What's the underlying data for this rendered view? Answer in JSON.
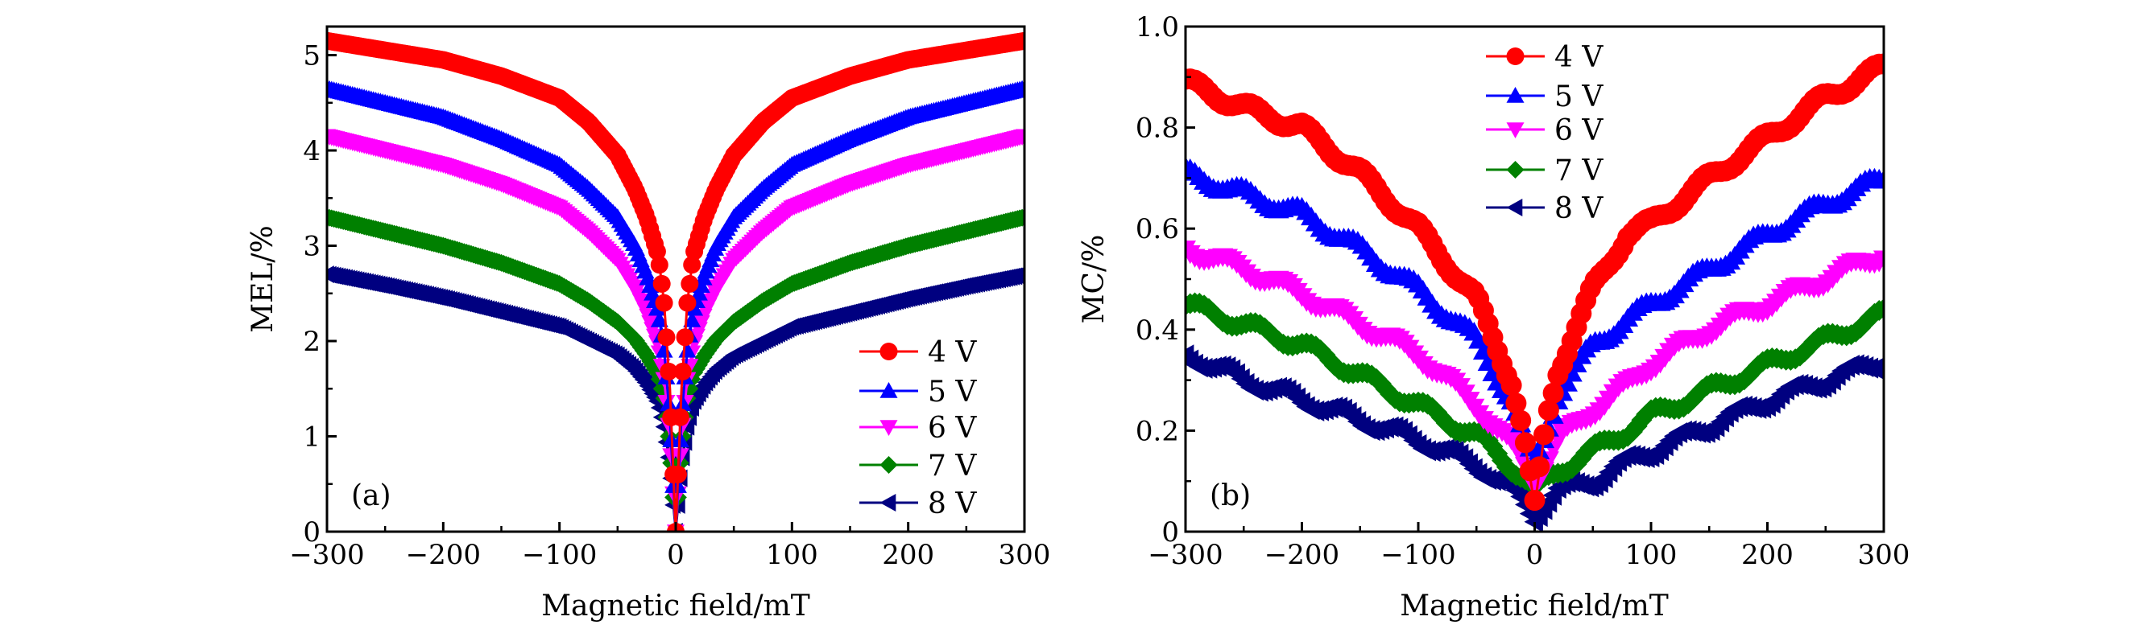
{
  "chart_data": [
    {
      "type": "line",
      "panel_label": "(a)",
      "xlabel": "Magnetic field/mT",
      "ylabel": "MEL/%",
      "xlim": [
        -300,
        300
      ],
      "ylim": [
        0,
        5.3
      ],
      "xticks": [
        -300,
        -200,
        -100,
        0,
        100,
        200,
        300
      ],
      "xtick_labels": [
        "−300",
        "−200",
        "−100",
        "0",
        "100",
        "200",
        "300"
      ],
      "yticks": [
        0,
        1,
        2,
        3,
        4,
        5
      ],
      "ytick_labels": [
        "0",
        "1",
        "2",
        "3",
        "4",
        "5"
      ],
      "legend_position": "lower-right",
      "x": [
        -300,
        -250,
        -200,
        -150,
        -100,
        -75,
        -50,
        -35,
        -25,
        -15,
        -10,
        -5,
        0,
        5,
        10,
        15,
        25,
        35,
        50,
        75,
        100,
        150,
        200,
        250,
        300
      ],
      "series": [
        {
          "name": "4 V",
          "color": "#ff0000",
          "marker": "circle",
          "values": [
            5.15,
            5.05,
            4.95,
            4.78,
            4.55,
            4.3,
            3.95,
            3.6,
            3.3,
            2.9,
            2.4,
            1.5,
            0,
            1.5,
            2.4,
            2.9,
            3.3,
            3.6,
            3.95,
            4.3,
            4.55,
            4.78,
            4.95,
            5.05,
            5.15
          ]
        },
        {
          "name": "5 V",
          "color": "#0000ff",
          "marker": "triangle-up",
          "values": [
            4.65,
            4.5,
            4.35,
            4.12,
            3.85,
            3.6,
            3.3,
            3.0,
            2.7,
            2.3,
            1.9,
            1.2,
            0,
            1.2,
            1.9,
            2.3,
            2.7,
            3.0,
            3.3,
            3.6,
            3.85,
            4.12,
            4.35,
            4.5,
            4.65
          ]
        },
        {
          "name": "6 V",
          "color": "#ff00ff",
          "marker": "triangle-down",
          "values": [
            4.15,
            4.0,
            3.85,
            3.65,
            3.4,
            3.15,
            2.85,
            2.55,
            2.3,
            1.95,
            1.6,
            1.0,
            0,
            1.0,
            1.6,
            1.95,
            2.3,
            2.55,
            2.85,
            3.15,
            3.4,
            3.65,
            3.85,
            4.0,
            4.15
          ]
        },
        {
          "name": "7 V",
          "color": "#008000",
          "marker": "diamond",
          "values": [
            3.3,
            3.15,
            3.0,
            2.82,
            2.6,
            2.42,
            2.2,
            2.02,
            1.85,
            1.65,
            1.4,
            0.9,
            0,
            0.9,
            1.4,
            1.65,
            1.85,
            2.02,
            2.2,
            2.42,
            2.6,
            2.82,
            3.0,
            3.15,
            3.3
          ]
        },
        {
          "name": "8 V",
          "color": "#000080",
          "marker": "triangle-left",
          "values": [
            2.7,
            2.58,
            2.45,
            2.3,
            2.15,
            2.0,
            1.85,
            1.7,
            1.55,
            1.35,
            1.1,
            0.7,
            0,
            0.7,
            1.1,
            1.35,
            1.55,
            1.7,
            1.85,
            2.0,
            2.15,
            2.3,
            2.45,
            2.58,
            2.7
          ]
        }
      ]
    },
    {
      "type": "line",
      "panel_label": "(b)",
      "xlabel": "Magnetic field/mT",
      "ylabel": "MC/%",
      "xlim": [
        -300,
        300
      ],
      "ylim": [
        0,
        1.0
      ],
      "xticks": [
        -300,
        -200,
        -100,
        0,
        100,
        200,
        300
      ],
      "xtick_labels": [
        "−300",
        "−200",
        "−100",
        "0",
        "100",
        "200",
        "300"
      ],
      "yticks": [
        0,
        0.2,
        0.4,
        0.6,
        0.8,
        1.0
      ],
      "ytick_labels": [
        "0",
        "0.2",
        "0.4",
        "0.6",
        "0.8",
        "1.0"
      ],
      "legend_position": "upper-center",
      "x": [
        -300,
        -250,
        -200,
        -150,
        -100,
        -50,
        -20,
        -10,
        0,
        10,
        20,
        50,
        80,
        100,
        150,
        200,
        250,
        300
      ],
      "series": [
        {
          "name": "4 V",
          "color": "#ff0000",
          "marker": "circle",
          "values": [
            0.89,
            0.84,
            0.8,
            0.71,
            0.6,
            0.46,
            0.3,
            0.2,
            0.05,
            0.22,
            0.32,
            0.48,
            0.59,
            0.61,
            0.7,
            0.78,
            0.86,
            0.92
          ]
        },
        {
          "name": "5 V",
          "color": "#0000ff",
          "marker": "triangle-up",
          "values": [
            0.71,
            0.67,
            0.63,
            0.56,
            0.48,
            0.38,
            0.26,
            0.19,
            0.13,
            0.2,
            0.27,
            0.37,
            0.42,
            0.45,
            0.52,
            0.59,
            0.65,
            0.7
          ]
        },
        {
          "name": "6 V",
          "color": "#ff00ff",
          "marker": "triangle-down",
          "values": [
            0.56,
            0.52,
            0.47,
            0.41,
            0.35,
            0.25,
            0.17,
            0.14,
            0.1,
            0.14,
            0.18,
            0.24,
            0.29,
            0.33,
            0.4,
            0.45,
            0.5,
            0.55
          ]
        },
        {
          "name": "7 V",
          "color": "#008000",
          "marker": "diamond",
          "values": [
            0.45,
            0.41,
            0.37,
            0.31,
            0.25,
            0.19,
            0.13,
            0.11,
            0.08,
            0.1,
            0.12,
            0.16,
            0.2,
            0.23,
            0.28,
            0.33,
            0.38,
            0.43
          ]
        },
        {
          "name": "8 V",
          "color": "#000080",
          "marker": "triangle-left",
          "values": [
            0.35,
            0.3,
            0.26,
            0.22,
            0.18,
            0.13,
            0.08,
            0.06,
            0.03,
            0.06,
            0.08,
            0.1,
            0.14,
            0.16,
            0.21,
            0.26,
            0.3,
            0.34
          ]
        }
      ]
    }
  ]
}
